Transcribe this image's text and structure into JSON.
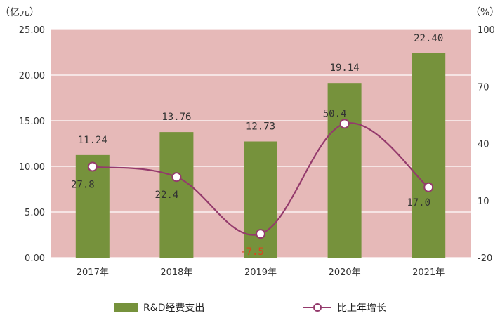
{
  "chart_data": {
    "type": "bar",
    "categories": [
      "2017年",
      "2018年",
      "2019年",
      "2020年",
      "2021年"
    ],
    "series": [
      {
        "name": "R&D经费支出",
        "type": "bar",
        "axis": "left",
        "values": [
          11.24,
          13.76,
          12.73,
          19.14,
          22.4
        ],
        "labels": [
          "11.24",
          "13.76",
          "12.73",
          "19.14",
          "22.40"
        ],
        "color": "#76923c"
      },
      {
        "name": "比上年增长",
        "type": "line",
        "axis": "right",
        "values": [
          27.8,
          22.4,
          -7.5,
          50.4,
          17.0
        ],
        "labels": [
          "27.8",
          "22.4",
          "-7.5",
          "50.4",
          "17.0"
        ],
        "color": "#943a6c"
      }
    ],
    "left_axis": {
      "unit": "（亿元）",
      "ylim": [
        0,
        25
      ],
      "ticks": [
        "0.00",
        "5.00",
        "10.00",
        "15.00",
        "20.00",
        "25.00"
      ]
    },
    "right_axis": {
      "unit": "（%）",
      "ylim": [
        -20,
        100
      ],
      "ticks": [
        "-20",
        "10",
        "40",
        "70",
        "100"
      ]
    },
    "plot_background": "#e6b9b8",
    "gridlines": true,
    "legend_position": "bottom"
  }
}
